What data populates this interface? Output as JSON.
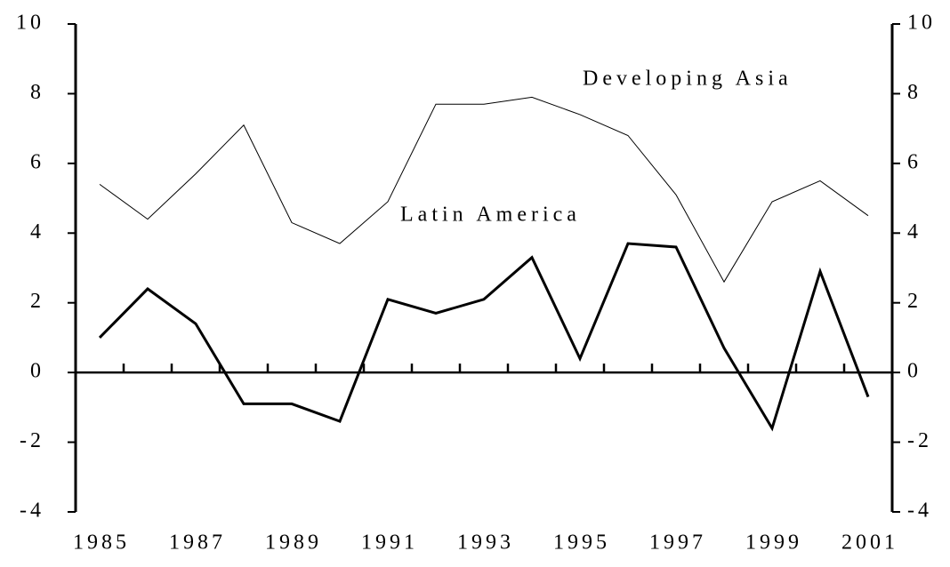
{
  "chart_data": {
    "type": "line",
    "categories": [
      "1985",
      null,
      "1987",
      null,
      "1989",
      null,
      "1991",
      null,
      "1993",
      null,
      "1995",
      null,
      "1997",
      null,
      "1999",
      null,
      "2001"
    ],
    "series": [
      {
        "name": "Developing Asia",
        "color": "#000000",
        "values": [
          5.4,
          4.4,
          5.7,
          7.1,
          4.3,
          3.7,
          4.9,
          7.7,
          7.7,
          7.9,
          7.4,
          6.8,
          5.1,
          2.6,
          4.9,
          5.5,
          4.5
        ]
      },
      {
        "name": "Latin America",
        "color": "#000000",
        "values": [
          1.0,
          2.4,
          1.4,
          -0.9,
          -0.9,
          -1.4,
          2.1,
          1.7,
          2.1,
          3.3,
          0.4,
          3.7,
          3.6,
          0.7,
          -1.6,
          2.9,
          -0.7
        ]
      }
    ],
    "ylim": [
      -4,
      10
    ],
    "yticks": [
      -4,
      -2,
      0,
      2,
      4,
      6,
      8,
      10
    ],
    "y2lim": [
      -4,
      10
    ],
    "y2ticks": [
      -4,
      -2,
      0,
      2,
      4,
      6,
      8,
      10
    ]
  }
}
